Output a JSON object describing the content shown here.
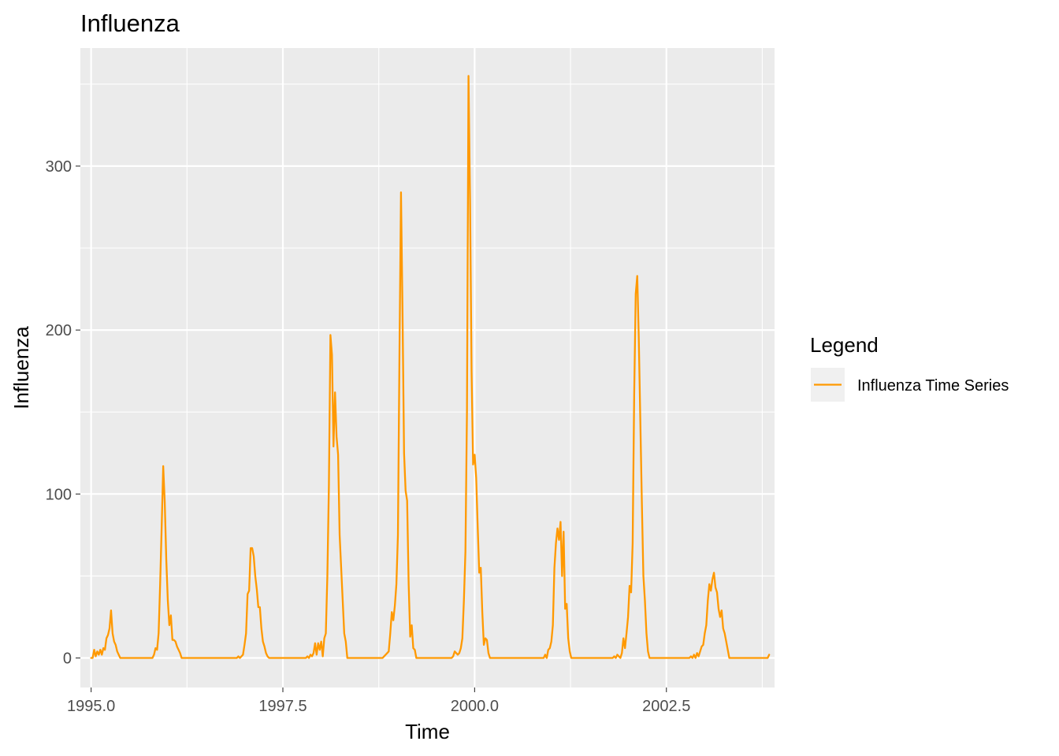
{
  "chart_data": {
    "type": "line",
    "title": "Influenza",
    "xlabel": "Time",
    "ylabel": "Influenza",
    "xlim": [
      1994.86,
      2003.91
    ],
    "ylim": [
      -18,
      372
    ],
    "x_ticks": [
      1995.0,
      1997.5,
      2000.0,
      2002.5
    ],
    "x_tick_labels": [
      "1995.0",
      "1997.5",
      "2000.0",
      "2002.5"
    ],
    "y_ticks": [
      0,
      100,
      200,
      300
    ],
    "y_tick_labels": [
      "0",
      "100",
      "200",
      "300"
    ],
    "grid": true,
    "legend": {
      "title": "Legend",
      "position": "right",
      "entries": [
        "Influenza Time Series"
      ]
    },
    "colors": {
      "series": "#ff9900",
      "panel": "#ebebeb",
      "grid": "#ffffff",
      "tick_text": "#4d4d4d",
      "legend_key": "#f0f0f0"
    },
    "series": [
      {
        "name": "Influenza Time Series",
        "points": [
          [
            1995.0,
            0
          ],
          [
            1995.02,
            0
          ],
          [
            1995.04,
            5
          ],
          [
            1995.06,
            1
          ],
          [
            1995.08,
            4
          ],
          [
            1995.1,
            2
          ],
          [
            1995.12,
            5
          ],
          [
            1995.14,
            2
          ],
          [
            1995.16,
            6
          ],
          [
            1995.18,
            5
          ],
          [
            1995.2,
            12
          ],
          [
            1995.22,
            14
          ],
          [
            1995.24,
            18
          ],
          [
            1995.26,
            29
          ],
          [
            1995.28,
            15
          ],
          [
            1995.3,
            10
          ],
          [
            1995.32,
            8
          ],
          [
            1995.34,
            4
          ],
          [
            1995.36,
            2
          ],
          [
            1995.38,
            0
          ],
          [
            1995.4,
            0
          ],
          [
            1995.8,
            0
          ],
          [
            1995.82,
            2
          ],
          [
            1995.84,
            6
          ],
          [
            1995.86,
            5
          ],
          [
            1995.88,
            15
          ],
          [
            1995.9,
            45
          ],
          [
            1995.92,
            80
          ],
          [
            1995.94,
            117
          ],
          [
            1995.96,
            95
          ],
          [
            1995.98,
            60
          ],
          [
            1996.0,
            35
          ],
          [
            1996.02,
            20
          ],
          [
            1996.04,
            26
          ],
          [
            1996.06,
            11
          ],
          [
            1996.08,
            11
          ],
          [
            1996.1,
            10
          ],
          [
            1996.12,
            7
          ],
          [
            1996.14,
            5
          ],
          [
            1996.16,
            3
          ],
          [
            1996.18,
            0
          ],
          [
            1996.2,
            0
          ],
          [
            1996.9,
            0
          ],
          [
            1996.92,
            1
          ],
          [
            1996.94,
            0
          ],
          [
            1996.96,
            1
          ],
          [
            1996.98,
            2
          ],
          [
            1997.0,
            8
          ],
          [
            1997.02,
            15
          ],
          [
            1997.04,
            39
          ],
          [
            1997.06,
            41
          ],
          [
            1997.08,
            67
          ],
          [
            1997.1,
            67
          ],
          [
            1997.12,
            62
          ],
          [
            1997.14,
            50
          ],
          [
            1997.16,
            42
          ],
          [
            1997.18,
            31
          ],
          [
            1997.2,
            31
          ],
          [
            1997.22,
            18
          ],
          [
            1997.24,
            10
          ],
          [
            1997.26,
            7
          ],
          [
            1997.28,
            3
          ],
          [
            1997.3,
            1
          ],
          [
            1997.32,
            0
          ],
          [
            1997.34,
            0
          ],
          [
            1997.8,
            0
          ],
          [
            1997.82,
            1
          ],
          [
            1997.84,
            0
          ],
          [
            1997.86,
            2
          ],
          [
            1997.88,
            1
          ],
          [
            1997.9,
            3
          ],
          [
            1997.92,
            9
          ],
          [
            1997.94,
            2
          ],
          [
            1997.96,
            9
          ],
          [
            1997.98,
            5
          ],
          [
            1998.0,
            10
          ],
          [
            1998.02,
            1
          ],
          [
            1998.04,
            12
          ],
          [
            1998.06,
            15
          ],
          [
            1998.08,
            50
          ],
          [
            1998.1,
            105
          ],
          [
            1998.12,
            197
          ],
          [
            1998.14,
            185
          ],
          [
            1998.16,
            129
          ],
          [
            1998.18,
            162
          ],
          [
            1998.2,
            135
          ],
          [
            1998.22,
            124
          ],
          [
            1998.24,
            75
          ],
          [
            1998.26,
            55
          ],
          [
            1998.28,
            35
          ],
          [
            1998.3,
            15
          ],
          [
            1998.32,
            10
          ],
          [
            1998.34,
            0
          ],
          [
            1998.36,
            0
          ],
          [
            1998.8,
            0
          ],
          [
            1998.82,
            1
          ],
          [
            1998.84,
            2
          ],
          [
            1998.86,
            3
          ],
          [
            1998.88,
            4
          ],
          [
            1998.9,
            15
          ],
          [
            1998.92,
            28
          ],
          [
            1998.94,
            23
          ],
          [
            1998.96,
            32
          ],
          [
            1998.98,
            45
          ],
          [
            1999.0,
            75
          ],
          [
            1999.02,
            185
          ],
          [
            1999.04,
            284
          ],
          [
            1999.06,
            210
          ],
          [
            1999.08,
            125
          ],
          [
            1999.1,
            102
          ],
          [
            1999.12,
            96
          ],
          [
            1999.14,
            45
          ],
          [
            1999.16,
            13
          ],
          [
            1999.18,
            20
          ],
          [
            1999.2,
            6
          ],
          [
            1999.22,
            5
          ],
          [
            1999.24,
            0
          ],
          [
            1999.26,
            0
          ],
          [
            1999.7,
            0
          ],
          [
            1999.72,
            1
          ],
          [
            1999.74,
            4
          ],
          [
            1999.76,
            3
          ],
          [
            1999.78,
            2
          ],
          [
            1999.8,
            3
          ],
          [
            1999.82,
            6
          ],
          [
            1999.84,
            12
          ],
          [
            1999.86,
            35
          ],
          [
            1999.88,
            65
          ],
          [
            1999.9,
            150
          ],
          [
            1999.92,
            355
          ],
          [
            1999.94,
            280
          ],
          [
            1999.96,
            175
          ],
          [
            1999.98,
            118
          ],
          [
            2000.0,
            124
          ],
          [
            2000.02,
            110
          ],
          [
            2000.04,
            80
          ],
          [
            2000.06,
            52
          ],
          [
            2000.08,
            55
          ],
          [
            2000.1,
            28
          ],
          [
            2000.12,
            8
          ],
          [
            2000.14,
            12
          ],
          [
            2000.16,
            11
          ],
          [
            2000.18,
            3
          ],
          [
            2000.2,
            0
          ],
          [
            2000.22,
            0
          ],
          [
            2000.9,
            0
          ],
          [
            2000.92,
            2
          ],
          [
            2000.94,
            0
          ],
          [
            2000.96,
            5
          ],
          [
            2000.98,
            6
          ],
          [
            2001.0,
            10
          ],
          [
            2001.02,
            20
          ],
          [
            2001.04,
            55
          ],
          [
            2001.06,
            70
          ],
          [
            2001.08,
            79
          ],
          [
            2001.1,
            72
          ],
          [
            2001.12,
            83
          ],
          [
            2001.14,
            50
          ],
          [
            2001.16,
            77
          ],
          [
            2001.18,
            30
          ],
          [
            2001.2,
            33
          ],
          [
            2001.22,
            12
          ],
          [
            2001.24,
            4
          ],
          [
            2001.26,
            0
          ],
          [
            2001.28,
            0
          ],
          [
            2001.8,
            0
          ],
          [
            2001.82,
            1
          ],
          [
            2001.84,
            0
          ],
          [
            2001.86,
            2
          ],
          [
            2001.88,
            1
          ],
          [
            2001.9,
            0
          ],
          [
            2001.92,
            3
          ],
          [
            2001.94,
            12
          ],
          [
            2001.96,
            6
          ],
          [
            2001.98,
            15
          ],
          [
            2002.0,
            25
          ],
          [
            2002.02,
            44
          ],
          [
            2002.04,
            40
          ],
          [
            2002.06,
            70
          ],
          [
            2002.08,
            160
          ],
          [
            2002.1,
            222
          ],
          [
            2002.12,
            233
          ],
          [
            2002.14,
            195
          ],
          [
            2002.16,
            145
          ],
          [
            2002.18,
            95
          ],
          [
            2002.2,
            50
          ],
          [
            2002.22,
            35
          ],
          [
            2002.24,
            15
          ],
          [
            2002.26,
            4
          ],
          [
            2002.28,
            0
          ],
          [
            2002.3,
            0
          ],
          [
            2002.8,
            0
          ],
          [
            2002.82,
            1
          ],
          [
            2002.84,
            0
          ],
          [
            2002.86,
            2
          ],
          [
            2002.88,
            0
          ],
          [
            2002.9,
            3
          ],
          [
            2002.92,
            1
          ],
          [
            2002.94,
            4
          ],
          [
            2002.96,
            7
          ],
          [
            2002.98,
            8
          ],
          [
            2003.0,
            15
          ],
          [
            2003.02,
            20
          ],
          [
            2003.04,
            35
          ],
          [
            2003.06,
            45
          ],
          [
            2003.08,
            41
          ],
          [
            2003.1,
            48
          ],
          [
            2003.12,
            52
          ],
          [
            2003.14,
            43
          ],
          [
            2003.16,
            40
          ],
          [
            2003.18,
            30
          ],
          [
            2003.2,
            25
          ],
          [
            2003.22,
            29
          ],
          [
            2003.24,
            18
          ],
          [
            2003.26,
            15
          ],
          [
            2003.28,
            10
          ],
          [
            2003.3,
            5
          ],
          [
            2003.32,
            0
          ],
          [
            2003.34,
            0
          ],
          [
            2003.8,
            0
          ],
          [
            2003.82,
            0
          ],
          [
            2003.84,
            2
          ]
        ]
      }
    ]
  }
}
